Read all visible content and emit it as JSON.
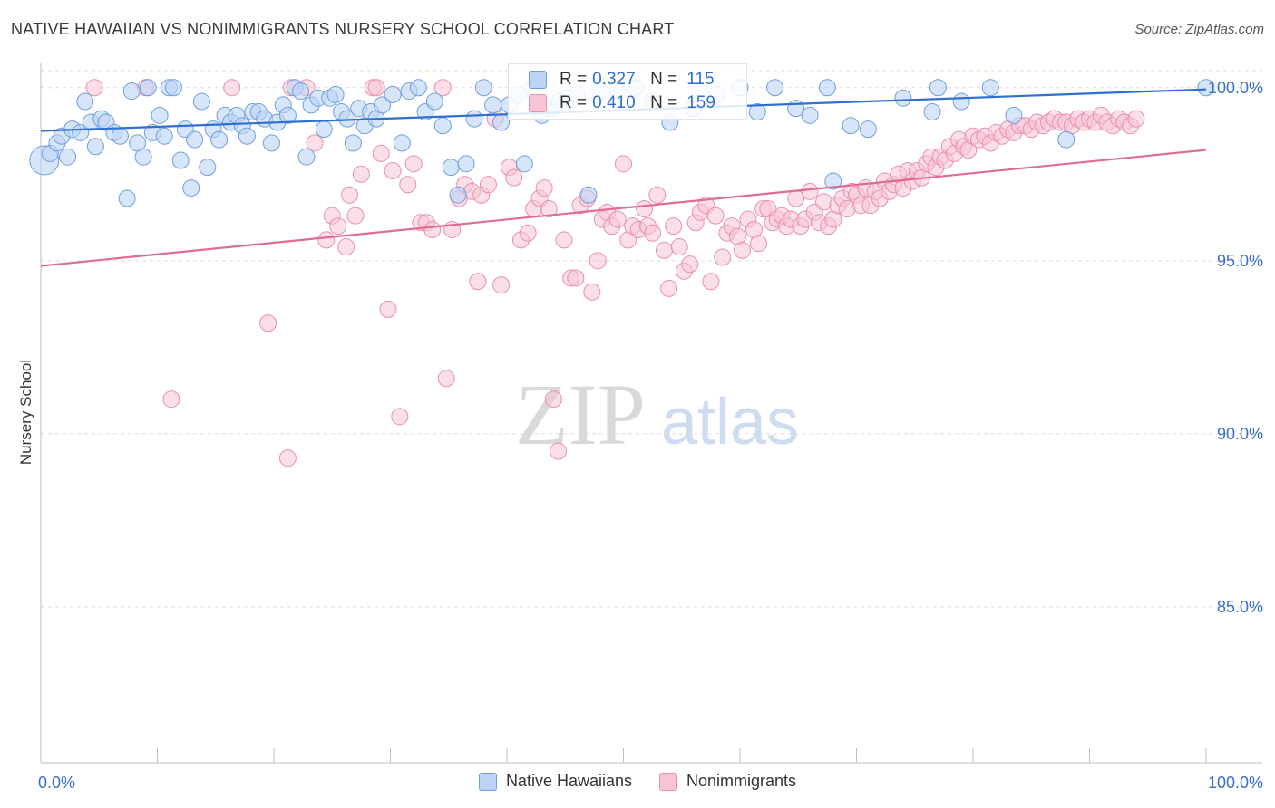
{
  "title": "NATIVE HAWAIIAN VS NONIMMIGRANTS NURSERY SCHOOL CORRELATION CHART",
  "source": "Source: ZipAtlas.com",
  "watermark": {
    "zip": "ZIP",
    "atlas": "atlas"
  },
  "stats": {
    "r_label": "R =",
    "n_label": "N =",
    "rows": [
      {
        "r": "0.327",
        "n": "115",
        "color": "#6f9fe0",
        "fill": "#bcd3f5"
      },
      {
        "r": "0.410",
        "n": "159",
        "color": "#e890ac",
        "fill": "#f7c5d5"
      }
    ]
  },
  "legend": [
    {
      "label": "Native Hawaiians",
      "color": "#6f9fe0",
      "fill": "#bcd3f5"
    },
    {
      "label": "Nonimmigrants",
      "color": "#e890ac",
      "fill": "#f7c5d5"
    }
  ],
  "chart_data": {
    "type": "scatter",
    "title": "NATIVE HAWAIIAN VS NONIMMIGRANTS NURSERY SCHOOL CORRELATION CHART",
    "xlabel": "",
    "ylabel": "Nursery School",
    "xlim": [
      0,
      100
    ],
    "ylim": [
      80.5,
      100.7
    ],
    "x_tick_labels": [
      "0.0%",
      "100.0%"
    ],
    "y_ticks": [
      85,
      90,
      95,
      100
    ],
    "y_tick_labels": [
      "85.0%",
      "90.0%",
      "95.0%",
      "100.0%"
    ],
    "grid": "horizontal dashed",
    "legend_position": "bottom-center",
    "series": [
      {
        "name": "Native Hawaiians",
        "color": "#6f9fe0",
        "fill": "#bcd3f5",
        "line_color": "#2f6fd0",
        "trend": [
          [
            0,
            98.75
          ],
          [
            100,
            99.95
          ]
        ],
        "points": [
          [
            0.3,
            97.9
          ],
          [
            0.8,
            98.1
          ],
          [
            1.4,
            98.4
          ],
          [
            1.8,
            98.6
          ],
          [
            2.3,
            98.0
          ],
          [
            2.7,
            98.8
          ],
          [
            3.4,
            98.7
          ],
          [
            3.8,
            99.6
          ],
          [
            4.3,
            99.0
          ],
          [
            4.7,
            98.3
          ],
          [
            5.2,
            99.1
          ],
          [
            5.6,
            99.0
          ],
          [
            6.3,
            98.7
          ],
          [
            6.8,
            98.6
          ],
          [
            7.4,
            96.8
          ],
          [
            7.8,
            99.9
          ],
          [
            8.3,
            98.4
          ],
          [
            8.8,
            98.0
          ],
          [
            9.2,
            100.0
          ],
          [
            9.6,
            98.7
          ],
          [
            10.2,
            99.2
          ],
          [
            10.6,
            98.6
          ],
          [
            11.0,
            100.0
          ],
          [
            11.4,
            100.0
          ],
          [
            12.0,
            97.9
          ],
          [
            12.4,
            98.8
          ],
          [
            12.9,
            97.1
          ],
          [
            13.2,
            98.5
          ],
          [
            13.8,
            99.6
          ],
          [
            14.3,
            97.7
          ],
          [
            14.8,
            98.8
          ],
          [
            15.3,
            98.5
          ],
          [
            15.8,
            99.2
          ],
          [
            16.3,
            99.0
          ],
          [
            16.8,
            99.2
          ],
          [
            17.3,
            98.9
          ],
          [
            17.7,
            98.6
          ],
          [
            18.2,
            99.3
          ],
          [
            18.7,
            99.3
          ],
          [
            19.2,
            99.1
          ],
          [
            19.8,
            98.4
          ],
          [
            20.3,
            99.0
          ],
          [
            20.8,
            99.5
          ],
          [
            21.2,
            99.2
          ],
          [
            21.8,
            100.0
          ],
          [
            22.3,
            99.9
          ],
          [
            22.8,
            98.0
          ],
          [
            23.2,
            99.5
          ],
          [
            23.8,
            99.7
          ],
          [
            24.3,
            98.8
          ],
          [
            24.8,
            99.7
          ],
          [
            25.3,
            99.8
          ],
          [
            25.8,
            99.3
          ],
          [
            26.3,
            99.1
          ],
          [
            26.8,
            98.4
          ],
          [
            27.3,
            99.4
          ],
          [
            27.8,
            98.9
          ],
          [
            28.3,
            99.3
          ],
          [
            28.8,
            99.1
          ],
          [
            29.3,
            99.5
          ],
          [
            30.2,
            99.8
          ],
          [
            31.0,
            98.4
          ],
          [
            31.6,
            99.9
          ],
          [
            32.4,
            100.0
          ],
          [
            33.0,
            99.3
          ],
          [
            33.8,
            99.6
          ],
          [
            34.5,
            98.9
          ],
          [
            35.2,
            97.7
          ],
          [
            35.8,
            96.9
          ],
          [
            36.5,
            97.8
          ],
          [
            37.2,
            99.1
          ],
          [
            38.0,
            100.0
          ],
          [
            38.8,
            99.5
          ],
          [
            39.5,
            99.0
          ],
          [
            40.2,
            99.5
          ],
          [
            41.0,
            99.8
          ],
          [
            41.5,
            97.8
          ],
          [
            42.2,
            100.0
          ],
          [
            43.0,
            99.2
          ],
          [
            43.8,
            99.4
          ],
          [
            44.5,
            99.6
          ],
          [
            45.2,
            99.7
          ],
          [
            46.0,
            99.8
          ],
          [
            47.0,
            96.9
          ],
          [
            48.0,
            99.9
          ],
          [
            49.5,
            99.9
          ],
          [
            51.0,
            100.0
          ],
          [
            52.5,
            99.6
          ],
          [
            54.0,
            99.0
          ],
          [
            56.0,
            99.4
          ],
          [
            58.0,
            99.8
          ],
          [
            60.0,
            100.0
          ],
          [
            61.5,
            99.3
          ],
          [
            63.0,
            100.0
          ],
          [
            64.8,
            99.4
          ],
          [
            66.0,
            99.2
          ],
          [
            67.5,
            100.0
          ],
          [
            68.0,
            97.3
          ],
          [
            69.5,
            98.9
          ],
          [
            71.0,
            98.8
          ],
          [
            74.0,
            99.7
          ],
          [
            76.5,
            99.3
          ],
          [
            77.0,
            100.0
          ],
          [
            79.0,
            99.6
          ],
          [
            81.5,
            100.0
          ],
          [
            83.5,
            99.2
          ],
          [
            88.0,
            98.5
          ],
          [
            100.0,
            100.0
          ]
        ]
      },
      {
        "name": "Nonimmigrants",
        "color": "#e890ac",
        "fill": "#f7c5d5",
        "line_color": "#e06b94",
        "trend": [
          [
            0,
            94.85
          ],
          [
            100,
            98.2
          ]
        ],
        "points": [
          [
            4.6,
            100.0
          ],
          [
            9.0,
            100.0
          ],
          [
            11.2,
            91.0
          ],
          [
            16.4,
            100.0
          ],
          [
            19.5,
            93.2
          ],
          [
            21.2,
            89.3
          ],
          [
            21.5,
            100.0
          ],
          [
            22.8,
            100.0
          ],
          [
            23.5,
            98.4
          ],
          [
            24.5,
            95.6
          ],
          [
            25.0,
            96.3
          ],
          [
            25.5,
            96.0
          ],
          [
            26.2,
            95.4
          ],
          [
            26.5,
            96.9
          ],
          [
            27.0,
            96.3
          ],
          [
            27.5,
            97.5
          ],
          [
            28.5,
            100.0
          ],
          [
            28.8,
            100.0
          ],
          [
            29.2,
            98.1
          ],
          [
            29.8,
            93.6
          ],
          [
            30.2,
            97.6
          ],
          [
            30.8,
            90.5
          ],
          [
            31.5,
            97.2
          ],
          [
            32.0,
            97.8
          ],
          [
            32.6,
            96.1
          ],
          [
            33.1,
            96.1
          ],
          [
            33.6,
            95.9
          ],
          [
            34.5,
            100.0
          ],
          [
            34.8,
            91.6
          ],
          [
            35.3,
            95.9
          ],
          [
            35.9,
            96.8
          ],
          [
            36.4,
            97.2
          ],
          [
            37.0,
            97.0
          ],
          [
            37.5,
            94.4
          ],
          [
            37.8,
            96.9
          ],
          [
            38.4,
            97.2
          ],
          [
            39.0,
            99.1
          ],
          [
            39.5,
            94.3
          ],
          [
            40.2,
            97.7
          ],
          [
            40.6,
            97.4
          ],
          [
            41.2,
            95.6
          ],
          [
            41.8,
            95.8
          ],
          [
            42.3,
            96.5
          ],
          [
            42.8,
            96.8
          ],
          [
            43.2,
            97.1
          ],
          [
            43.6,
            96.5
          ],
          [
            44.0,
            91.0
          ],
          [
            44.4,
            89.5
          ],
          [
            44.9,
            95.6
          ],
          [
            45.5,
            94.5
          ],
          [
            45.9,
            94.5
          ],
          [
            46.3,
            96.6
          ],
          [
            46.9,
            96.8
          ],
          [
            47.3,
            94.1
          ],
          [
            47.8,
            95.0
          ],
          [
            48.2,
            96.2
          ],
          [
            48.6,
            96.4
          ],
          [
            49.0,
            96.0
          ],
          [
            49.5,
            96.2
          ],
          [
            50.0,
            97.8
          ],
          [
            50.4,
            95.6
          ],
          [
            50.8,
            96.0
          ],
          [
            51.3,
            95.9
          ],
          [
            51.8,
            96.5
          ],
          [
            52.1,
            96.0
          ],
          [
            52.5,
            95.8
          ],
          [
            52.9,
            96.9
          ],
          [
            53.5,
            95.3
          ],
          [
            53.9,
            94.2
          ],
          [
            54.3,
            96.0
          ],
          [
            54.8,
            95.4
          ],
          [
            55.2,
            94.7
          ],
          [
            55.7,
            94.9
          ],
          [
            56.2,
            96.1
          ],
          [
            56.6,
            96.4
          ],
          [
            57.1,
            96.6
          ],
          [
            57.5,
            94.4
          ],
          [
            57.9,
            96.3
          ],
          [
            58.5,
            95.1
          ],
          [
            58.9,
            95.8
          ],
          [
            59.3,
            96.0
          ],
          [
            59.8,
            95.7
          ],
          [
            60.2,
            95.3
          ],
          [
            60.7,
            96.2
          ],
          [
            61.2,
            95.9
          ],
          [
            61.6,
            95.5
          ],
          [
            62.0,
            96.5
          ],
          [
            62.4,
            96.5
          ],
          [
            62.8,
            96.1
          ],
          [
            63.2,
            96.2
          ],
          [
            63.6,
            96.3
          ],
          [
            64.0,
            96.0
          ],
          [
            64.4,
            96.2
          ],
          [
            64.8,
            96.8
          ],
          [
            65.2,
            96.0
          ],
          [
            65.6,
            96.2
          ],
          [
            66.0,
            97.0
          ],
          [
            66.4,
            96.4
          ],
          [
            66.8,
            96.1
          ],
          [
            67.2,
            96.7
          ],
          [
            67.6,
            96.0
          ],
          [
            68.0,
            96.2
          ],
          [
            68.4,
            96.6
          ],
          [
            68.8,
            96.8
          ],
          [
            69.2,
            96.5
          ],
          [
            69.6,
            97.0
          ],
          [
            70.0,
            96.9
          ],
          [
            70.4,
            96.6
          ],
          [
            70.8,
            97.1
          ],
          [
            71.2,
            96.6
          ],
          [
            71.6,
            97.0
          ],
          [
            72.0,
            96.8
          ],
          [
            72.4,
            97.3
          ],
          [
            72.8,
            97.0
          ],
          [
            73.2,
            97.2
          ],
          [
            73.6,
            97.5
          ],
          [
            74.0,
            97.1
          ],
          [
            74.4,
            97.6
          ],
          [
            74.8,
            97.3
          ],
          [
            75.2,
            97.6
          ],
          [
            75.6,
            97.4
          ],
          [
            76.0,
            97.8
          ],
          [
            76.4,
            98.0
          ],
          [
            76.8,
            97.7
          ],
          [
            77.2,
            98.0
          ],
          [
            77.6,
            97.9
          ],
          [
            78.0,
            98.3
          ],
          [
            78.4,
            98.1
          ],
          [
            78.8,
            98.5
          ],
          [
            79.2,
            98.3
          ],
          [
            79.6,
            98.2
          ],
          [
            80.0,
            98.6
          ],
          [
            80.5,
            98.5
          ],
          [
            81.0,
            98.6
          ],
          [
            81.5,
            98.4
          ],
          [
            82.0,
            98.7
          ],
          [
            82.5,
            98.6
          ],
          [
            83.0,
            98.8
          ],
          [
            83.5,
            98.7
          ],
          [
            84.0,
            98.9
          ],
          [
            84.5,
            98.9
          ],
          [
            85.0,
            98.8
          ],
          [
            85.5,
            99.0
          ],
          [
            86.0,
            98.9
          ],
          [
            86.5,
            99.0
          ],
          [
            87.0,
            99.1
          ],
          [
            87.5,
            99.0
          ],
          [
            88.0,
            99.0
          ],
          [
            88.5,
            98.9
          ],
          [
            89.0,
            99.1
          ],
          [
            89.5,
            99.0
          ],
          [
            90.0,
            99.1
          ],
          [
            90.5,
            99.0
          ],
          [
            91.0,
            99.2
          ],
          [
            91.5,
            99.0
          ],
          [
            92.0,
            98.9
          ],
          [
            92.5,
            99.1
          ],
          [
            93.0,
            99.0
          ],
          [
            93.5,
            98.9
          ],
          [
            94.0,
            99.1
          ]
        ]
      }
    ]
  }
}
